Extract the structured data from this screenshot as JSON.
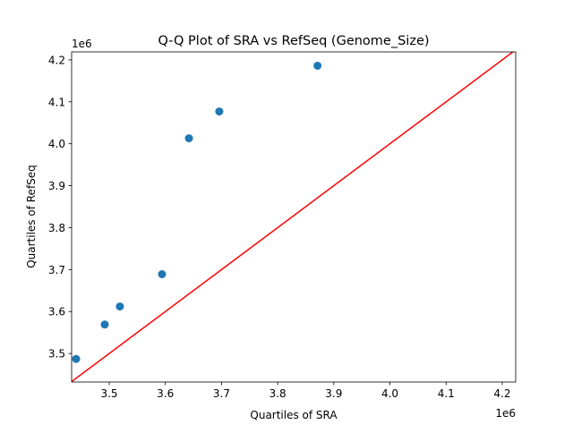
{
  "chart_data": {
    "type": "scatter",
    "title": "Q-Q Plot of SRA vs RefSeq (Genome_Size)",
    "xlabel": "Quartiles of SRA",
    "ylabel": "Quartiles of RefSeq",
    "x_offset_label": "1e6",
    "y_offset_label": "1e6",
    "xlim": [
      3.433,
      4.224
    ],
    "ylim": [
      3.432,
      4.219
    ],
    "xticks": [
      "3.5",
      "3.6",
      "3.7",
      "3.8",
      "3.9",
      "4.0",
      "4.1",
      "4.2"
    ],
    "yticks": [
      "3.5",
      "3.6",
      "3.7",
      "3.8",
      "3.9",
      "4.0",
      "4.1",
      "4.2"
    ],
    "grid": false,
    "points": {
      "x": [
        3.441,
        3.492,
        3.519,
        3.594,
        3.642,
        3.696,
        3.871
      ],
      "y": [
        3.487,
        3.569,
        3.612,
        3.689,
        4.013,
        4.077,
        4.186
      ],
      "color": "#1f77b4"
    },
    "reference_line": {
      "label": "y = x",
      "color": "#ff0000"
    }
  }
}
